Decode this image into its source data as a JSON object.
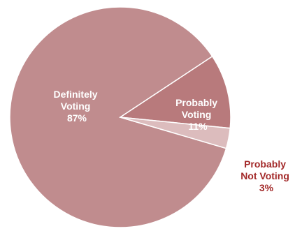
{
  "chart_data": {
    "type": "pie",
    "title": "",
    "slices": [
      {
        "label_lines": [
          "Definitely",
          "Voting"
        ],
        "value": 87,
        "value_label": "87%",
        "color": "#c08c8e",
        "label_position": "inside"
      },
      {
        "label_lines": [
          "Probably",
          "Voting"
        ],
        "value": 11,
        "value_label": "11%",
        "color": "#b87a7c",
        "label_position": "inside"
      },
      {
        "label_lines": [
          "Probably",
          "Not Voting"
        ],
        "value": 3,
        "value_label": "3%",
        "color": "#dcbcbd",
        "label_position": "outside"
      }
    ],
    "legend": "none",
    "label_color_outside": "#a32a2a",
    "edge_color": "#ffffff"
  }
}
